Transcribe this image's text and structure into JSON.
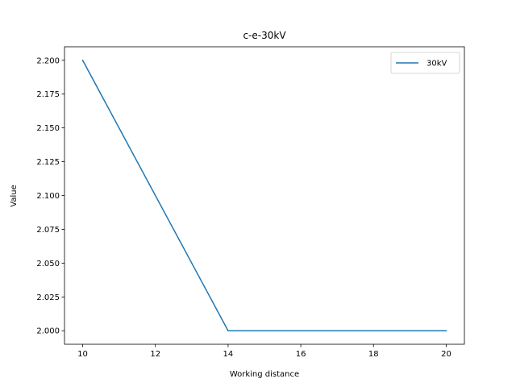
{
  "chart_data": {
    "type": "line",
    "title": "c-e-30kV",
    "xlabel": "Working distance",
    "ylabel": "Value",
    "xlim": [
      9.5,
      20.5
    ],
    "ylim": [
      1.99,
      2.21
    ],
    "xticks": [
      10,
      12,
      14,
      16,
      18,
      20
    ],
    "yticks": [
      2.0,
      2.025,
      2.05,
      2.075,
      2.1,
      2.125,
      2.15,
      2.175,
      2.2
    ],
    "ytick_labels": [
      "2.000",
      "2.025",
      "2.050",
      "2.075",
      "2.100",
      "2.125",
      "2.150",
      "2.175",
      "2.200"
    ],
    "grid": false,
    "legend_position": "top-right",
    "series": [
      {
        "name": "30kV",
        "color": "#1f77b4",
        "x": [
          10,
          14,
          20
        ],
        "y": [
          2.2,
          2.0,
          2.0
        ]
      }
    ]
  }
}
